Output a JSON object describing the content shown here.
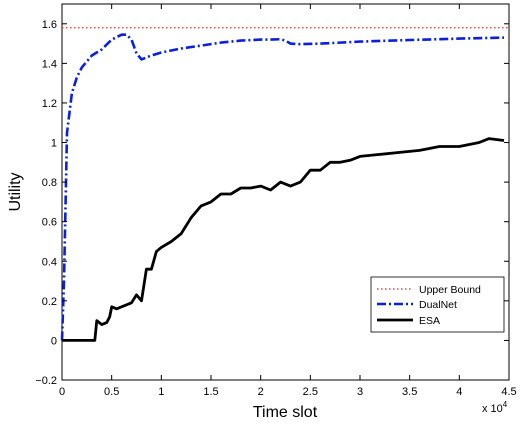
{
  "chart_data": {
    "type": "line",
    "title": "",
    "xlabel": "Time slot",
    "ylabel": "Utility",
    "x_multiplier_label": "x 10",
    "x_multiplier_exp": "4",
    "xlim": [
      0,
      4.5
    ],
    "ylim": [
      -0.2,
      1.7
    ],
    "x_ticks": [
      0,
      0.5,
      1,
      1.5,
      2,
      2.5,
      3,
      3.5,
      4,
      4.5
    ],
    "x_tick_labels": [
      "0",
      "0.5",
      "1",
      "1.5",
      "2",
      "2.5",
      "3",
      "3.5",
      "4",
      "4.5"
    ],
    "y_ticks": [
      -0.2,
      0,
      0.2,
      0.4,
      0.6,
      0.8,
      1,
      1.2,
      1.4,
      1.6
    ],
    "y_tick_labels": [
      "−0.2",
      "0",
      "0.2",
      "0.4",
      "0.6",
      "0.8",
      "1",
      "1.2",
      "1.4",
      "1.6"
    ],
    "grid": false,
    "legend_position": "bottom-right",
    "series": [
      {
        "name": "Upper Bound",
        "color": "#e8443a",
        "style": "dotted",
        "x": [
          0,
          4.5
        ],
        "y": [
          1.58,
          1.58
        ]
      },
      {
        "name": "DualNet",
        "color": "#0a1fe0",
        "style": "dashdot",
        "x": [
          0,
          0.02,
          0.05,
          0.1,
          0.15,
          0.2,
          0.3,
          0.4,
          0.5,
          0.6,
          0.65,
          0.7,
          0.75,
          0.8,
          0.9,
          1.0,
          1.2,
          1.4,
          1.6,
          1.8,
          2.0,
          2.1,
          2.2,
          2.25,
          2.3,
          2.4,
          2.6,
          3.0,
          3.5,
          4.0,
          4.45
        ],
        "y": [
          0.0,
          0.3,
          1.05,
          1.25,
          1.33,
          1.38,
          1.44,
          1.47,
          1.52,
          1.545,
          1.545,
          1.52,
          1.45,
          1.42,
          1.44,
          1.455,
          1.475,
          1.49,
          1.505,
          1.515,
          1.52,
          1.52,
          1.522,
          1.515,
          1.5,
          1.497,
          1.5,
          1.51,
          1.518,
          1.525,
          1.53
        ]
      },
      {
        "name": "ESA",
        "color": "#000000",
        "style": "solid",
        "x": [
          0,
          0.1,
          0.2,
          0.25,
          0.3,
          0.33,
          0.35,
          0.4,
          0.45,
          0.48,
          0.5,
          0.55,
          0.6,
          0.7,
          0.75,
          0.8,
          0.85,
          0.9,
          0.95,
          1.0,
          1.1,
          1.2,
          1.3,
          1.4,
          1.5,
          1.6,
          1.7,
          1.8,
          1.9,
          2.0,
          2.1,
          2.2,
          2.3,
          2.4,
          2.5,
          2.6,
          2.7,
          2.8,
          2.9,
          3.0,
          3.2,
          3.4,
          3.6,
          3.8,
          4.0,
          4.2,
          4.3,
          4.45
        ],
        "y": [
          0.0,
          0.0,
          0.0,
          0.0,
          0.0,
          0.0,
          0.1,
          0.08,
          0.09,
          0.12,
          0.17,
          0.16,
          0.17,
          0.19,
          0.23,
          0.2,
          0.36,
          0.36,
          0.45,
          0.47,
          0.5,
          0.54,
          0.62,
          0.68,
          0.7,
          0.74,
          0.74,
          0.77,
          0.77,
          0.78,
          0.76,
          0.8,
          0.78,
          0.8,
          0.86,
          0.86,
          0.9,
          0.9,
          0.91,
          0.93,
          0.94,
          0.95,
          0.96,
          0.98,
          0.98,
          1.0,
          1.02,
          1.01
        ]
      }
    ]
  }
}
